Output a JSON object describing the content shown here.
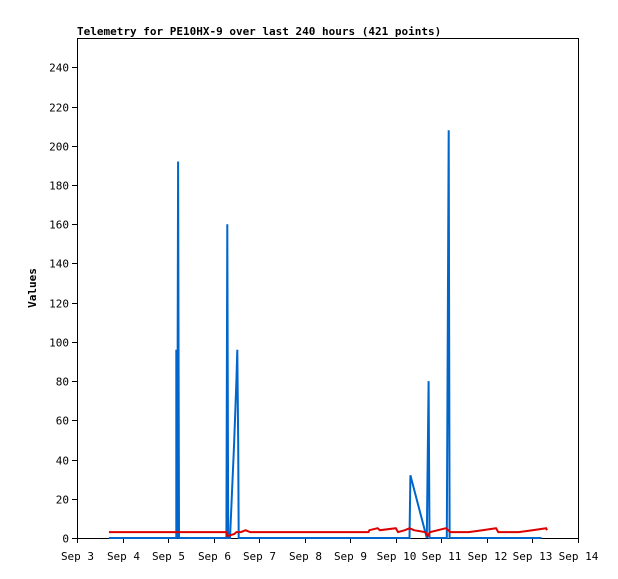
{
  "chart_data": {
    "type": "line",
    "title": "Telemetry for PE10HX-9 over last 240 hours (421 points)",
    "xlabel": "",
    "ylabel": "Values",
    "ylim": [
      0,
      255
    ],
    "xlim": [
      0,
      11
    ],
    "y_ticks": [
      0,
      20,
      40,
      60,
      80,
      100,
      120,
      140,
      160,
      180,
      200,
      220,
      240
    ],
    "x_ticks": [
      {
        "value": 0,
        "label": "Sep 3"
      },
      {
        "value": 1,
        "label": "Sep 4"
      },
      {
        "value": 2,
        "label": "Sep 5"
      },
      {
        "value": 3,
        "label": "Sep 6"
      },
      {
        "value": 4,
        "label": "Sep 7"
      },
      {
        "value": 5,
        "label": "Sep 8"
      },
      {
        "value": 6,
        "label": "Sep 9"
      },
      {
        "value": 7,
        "label": "Sep 10"
      },
      {
        "value": 8,
        "label": "Sep 11"
      },
      {
        "value": 9,
        "label": "Sep 12"
      },
      {
        "value": 10,
        "label": "Sep 13"
      },
      {
        "value": 11,
        "label": "Sep 14"
      }
    ],
    "grid": false,
    "legend": false,
    "series": [
      {
        "color": "#0066cc",
        "points": [
          [
            0.7,
            0
          ],
          [
            2.18,
            0
          ],
          [
            2.18,
            96
          ],
          [
            2.2,
            0
          ],
          [
            2.22,
            192
          ],
          [
            2.24,
            0
          ],
          [
            3.28,
            0
          ],
          [
            3.3,
            160
          ],
          [
            3.32,
            0
          ],
          [
            3.36,
            0
          ],
          [
            3.45,
            48
          ],
          [
            3.5,
            80
          ],
          [
            3.52,
            96
          ],
          [
            3.54,
            48
          ],
          [
            3.55,
            0
          ],
          [
            7.3,
            0
          ],
          [
            7.32,
            32
          ],
          [
            7.68,
            0
          ],
          [
            7.7,
            40
          ],
          [
            7.72,
            80
          ],
          [
            7.74,
            0
          ],
          [
            8.12,
            0
          ],
          [
            8.16,
            208
          ],
          [
            8.18,
            0
          ],
          [
            10.2,
            0
          ]
        ]
      },
      {
        "color": "#dd0000",
        "points": [
          [
            0.7,
            3
          ],
          [
            3.28,
            3
          ],
          [
            3.3,
            1
          ],
          [
            3.45,
            2
          ],
          [
            3.5,
            3
          ],
          [
            3.6,
            3
          ],
          [
            3.7,
            4
          ],
          [
            3.8,
            3
          ],
          [
            6.4,
            3
          ],
          [
            6.42,
            4
          ],
          [
            6.6,
            5
          ],
          [
            6.65,
            4
          ],
          [
            7.0,
            5
          ],
          [
            7.05,
            3
          ],
          [
            7.2,
            4
          ],
          [
            7.3,
            5
          ],
          [
            7.4,
            4
          ],
          [
            7.65,
            3
          ],
          [
            7.7,
            1
          ],
          [
            7.75,
            3
          ],
          [
            8.1,
            5
          ],
          [
            8.2,
            3
          ],
          [
            8.6,
            3
          ],
          [
            8.9,
            4
          ],
          [
            9.2,
            5
          ],
          [
            9.25,
            3
          ],
          [
            9.7,
            3
          ],
          [
            10.0,
            4
          ],
          [
            10.3,
            5
          ],
          [
            10.32,
            4
          ]
        ]
      }
    ]
  }
}
